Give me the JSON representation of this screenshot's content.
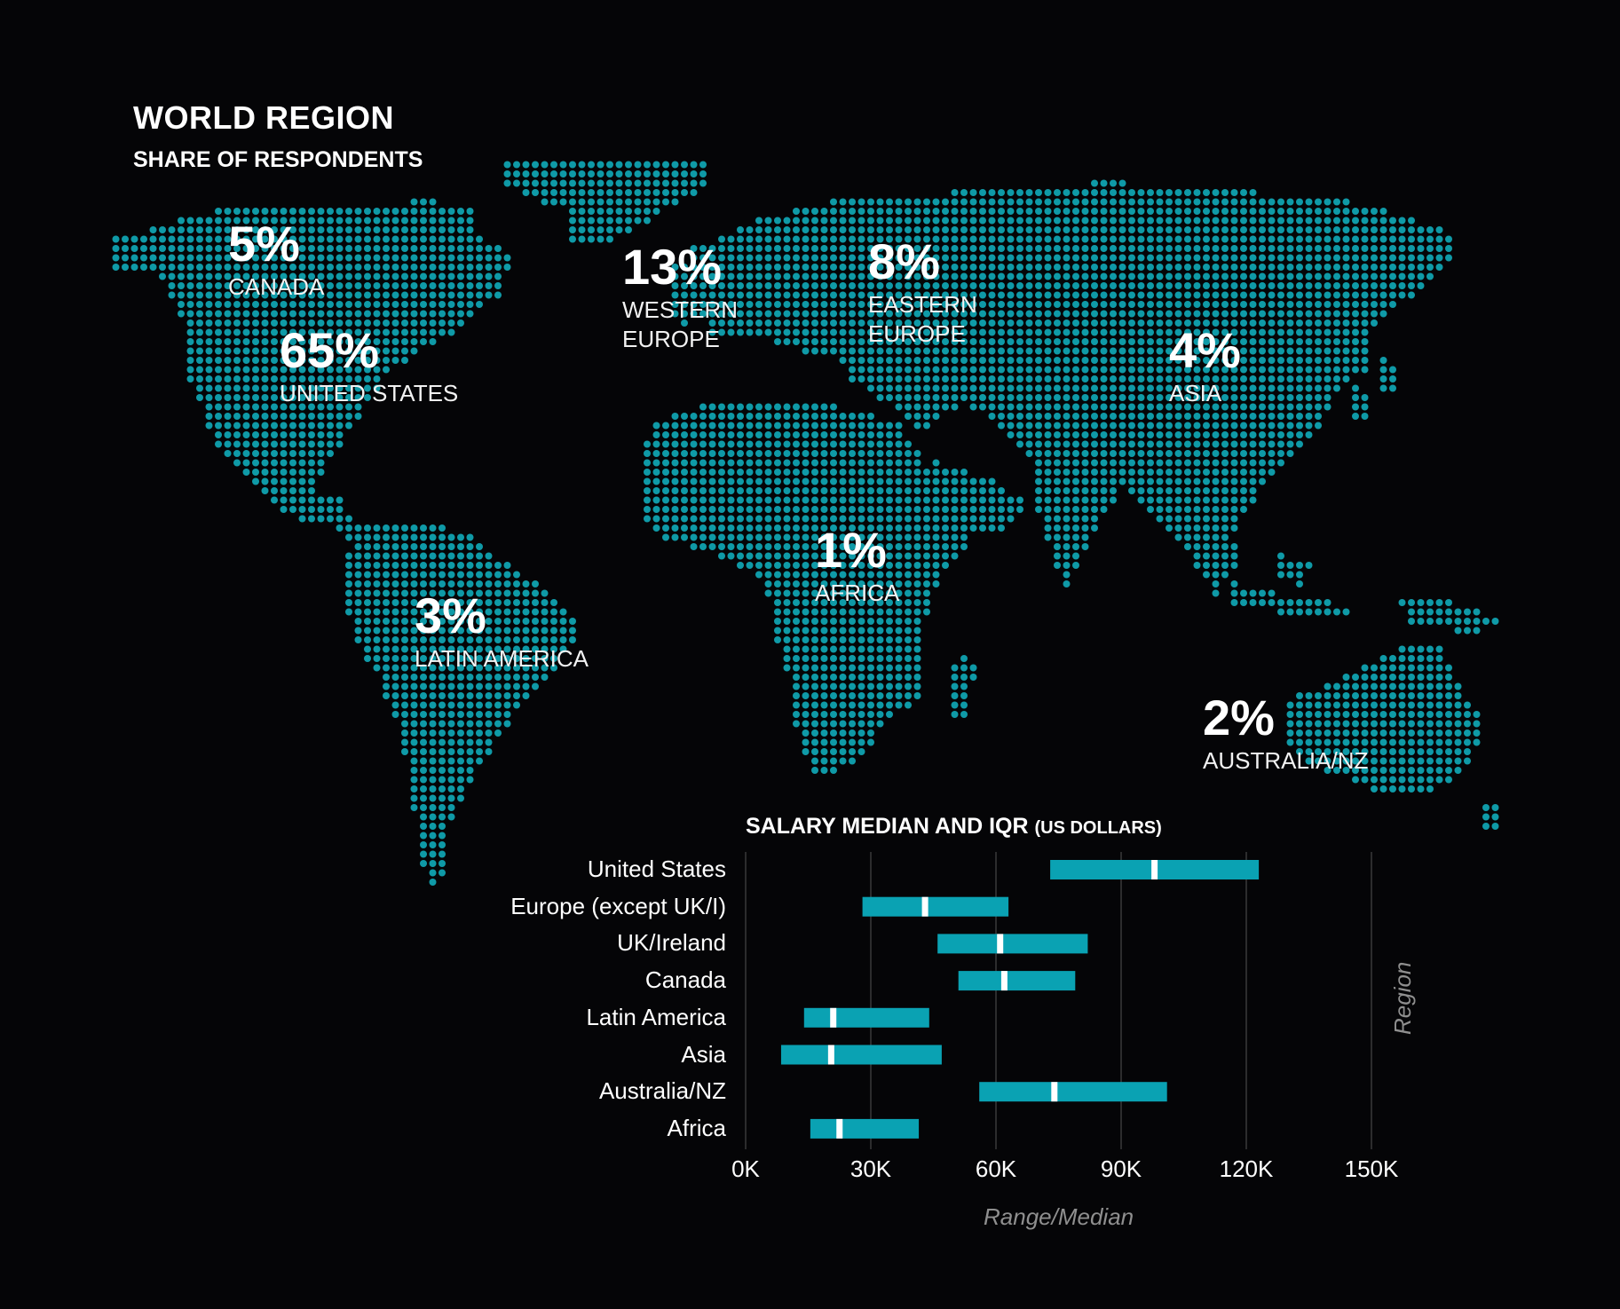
{
  "map": {
    "title": "WORLD REGION",
    "subtitle": "SHARE OF RESPONDENTS",
    "dot_color": "#0f9aa7",
    "regions": [
      {
        "pct": "5%",
        "name": "CANADA"
      },
      {
        "pct": "65%",
        "name": "UNITED STATES"
      },
      {
        "pct": "13%",
        "name": "WESTERN EUROPE"
      },
      {
        "pct": "8%",
        "name": "EASTERN EUROPE"
      },
      {
        "pct": "4%",
        "name": "ASIA"
      },
      {
        "pct": "1%",
        "name": "AFRICA"
      },
      {
        "pct": "3%",
        "name": "LATIN AMERICA"
      },
      {
        "pct": "2%",
        "name": "AUSTRALIA/NZ"
      }
    ]
  },
  "chart_data": {
    "type": "bar",
    "title": "SALARY MEDIAN AND IQR",
    "title_unit": "(US DOLLARS)",
    "xlabel": "Range/Median",
    "ylabel": "Region",
    "xlim": [
      0,
      165000
    ],
    "ticks": [
      {
        "value": 0,
        "label": "0K"
      },
      {
        "value": 30000,
        "label": "30K"
      },
      {
        "value": 60000,
        "label": "60K"
      },
      {
        "value": 90000,
        "label": "90K"
      },
      {
        "value": 120000,
        "label": "120K"
      },
      {
        "value": 150000,
        "label": "150K"
      }
    ],
    "bar_color": "#0aa2b3",
    "median_color": "#ffffff",
    "gridlines": true,
    "rows": [
      {
        "category": "United States",
        "q1": 73000,
        "median": 98000,
        "q3": 123000
      },
      {
        "category": "Europe (except UK/I)",
        "q1": 28000,
        "median": 43000,
        "q3": 63000
      },
      {
        "category": "UK/Ireland",
        "q1": 46000,
        "median": 61000,
        "q3": 82000
      },
      {
        "category": "Canada",
        "q1": 51000,
        "median": 62000,
        "q3": 79000
      },
      {
        "category": "Latin America",
        "q1": 14000,
        "median": 21000,
        "q3": 44000
      },
      {
        "category": "Asia",
        "q1": 8500,
        "median": 20500,
        "q3": 47000
      },
      {
        "category": "Australia/NZ",
        "q1": 56000,
        "median": 74000,
        "q3": 101000
      },
      {
        "category": "Africa",
        "q1": 15500,
        "median": 22500,
        "q3": 41500
      }
    ]
  }
}
